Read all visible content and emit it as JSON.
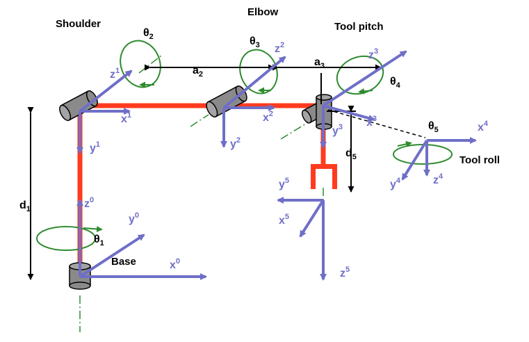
{
  "labels": {
    "shoulder": "Shoulder",
    "elbow": "Elbow",
    "tool_pitch": "Tool pitch",
    "tool_roll": "Tool roll",
    "base": "Base"
  },
  "frames": [
    {
      "axis": "x",
      "index": "0"
    },
    {
      "axis": "y",
      "index": "0"
    },
    {
      "axis": "z",
      "index": "0"
    },
    {
      "axis": "x",
      "index": "1"
    },
    {
      "axis": "y",
      "index": "1"
    },
    {
      "axis": "z",
      "index": "1"
    },
    {
      "axis": "x",
      "index": "2"
    },
    {
      "axis": "y",
      "index": "2"
    },
    {
      "axis": "z",
      "index": "2"
    },
    {
      "axis": "x",
      "index": "3"
    },
    {
      "axis": "y",
      "index": "3"
    },
    {
      "axis": "z",
      "index": "3"
    },
    {
      "axis": "x",
      "index": "4"
    },
    {
      "axis": "y",
      "index": "4"
    },
    {
      "axis": "z",
      "index": "4"
    },
    {
      "axis": "x",
      "index": "5"
    },
    {
      "axis": "y",
      "index": "5"
    },
    {
      "axis": "z",
      "index": "5"
    }
  ],
  "joint_angles": [
    {
      "symbol": "θ",
      "index": "1"
    },
    {
      "symbol": "θ",
      "index": "2"
    },
    {
      "symbol": "θ",
      "index": "3"
    },
    {
      "symbol": "θ",
      "index": "4"
    },
    {
      "symbol": "θ",
      "index": "5"
    }
  ],
  "dimensions": [
    {
      "symbol": "a",
      "index": "2"
    },
    {
      "symbol": "a",
      "index": "3"
    },
    {
      "symbol": "d",
      "index": "1"
    },
    {
      "symbol": "d",
      "index": "5"
    }
  ],
  "colors": {
    "axis": "#6f6fc8",
    "link": "#ff3b1f",
    "rotation": "#2e8b2e",
    "joint": "#8a8a8a",
    "text": "#000000"
  }
}
